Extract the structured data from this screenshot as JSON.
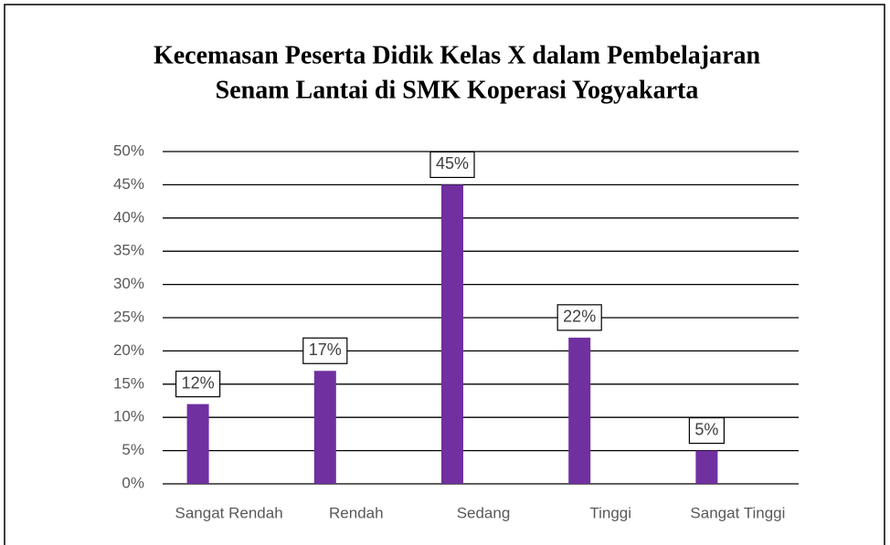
{
  "chart_data": {
    "type": "bar",
    "title": [
      "Kecemasan Peserta Didik Kelas X dalam Pembelajaran",
      "Senam Lantai  di SMK Koperasi Yogyakarta"
    ],
    "categories": [
      "Sangat Rendah",
      "Rendah",
      "Sedang",
      "Tinggi",
      "Sangat Tinggi"
    ],
    "values": [
      12,
      17,
      45,
      22,
      5
    ],
    "value_labels": [
      "12%",
      "17%",
      "45%",
      "22%",
      "5%"
    ],
    "color": "#7030a0",
    "ylim": [
      0,
      50
    ],
    "yticks": [
      {
        "value": 0,
        "label": "0%"
      },
      {
        "value": 5,
        "label": "5%"
      },
      {
        "value": 10,
        "label": "10%"
      },
      {
        "value": 15,
        "label": "15%"
      },
      {
        "value": 20,
        "label": "20%"
      },
      {
        "value": 25,
        "label": "25%"
      },
      {
        "value": 30,
        "label": "30%"
      },
      {
        "value": 35,
        "label": "35%"
      },
      {
        "value": 40,
        "label": "40%"
      },
      {
        "value": 45,
        "label": "45%"
      },
      {
        "value": 50,
        "label": "50%"
      }
    ],
    "grid": true
  }
}
